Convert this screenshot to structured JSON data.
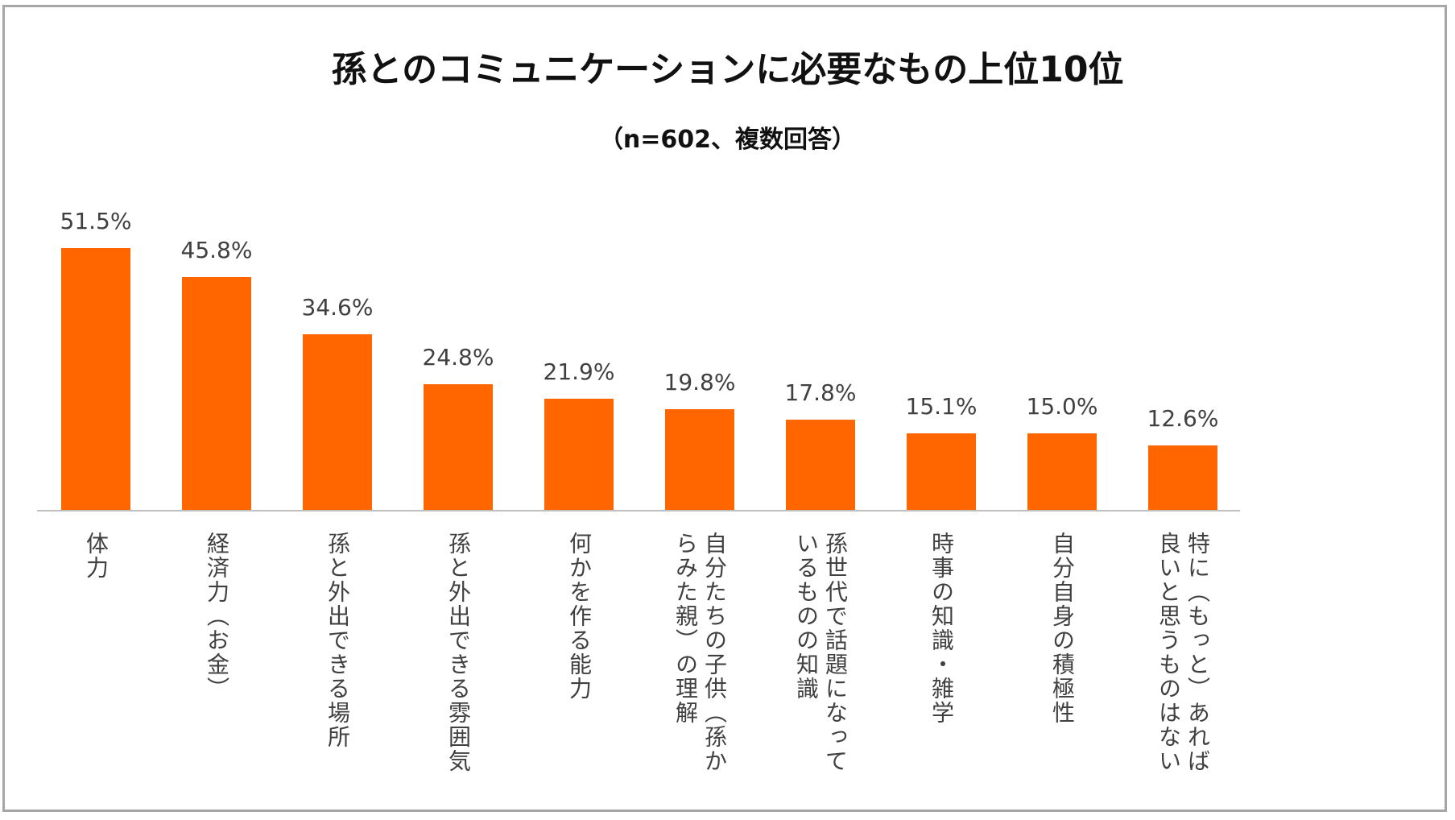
{
  "chart_data": {
    "type": "bar",
    "title": "孫とのコミュニケーションに必要なもの上位10位",
    "subtitle": "（n=602、複数回答）",
    "categories": [
      "体力",
      "経済力（お金）",
      "孫と外出できる場所",
      "孫と外出できる雰囲気",
      "何かを作る能力",
      "自分たちの子供（孫からみた親）の理解",
      "孫世代で話題になっているものの知識",
      "時事の知識・雑学",
      "自分自身の積極性",
      "特に（もっと）あれば良いと思うものはない"
    ],
    "category_lines": [
      [
        "体力"
      ],
      [
        "経済力（お金）"
      ],
      [
        "孫と外出できる場所"
      ],
      [
        "孫と外出できる雰囲気"
      ],
      [
        "何かを作る能力"
      ],
      [
        "自分たちの子供（孫か",
        "らみた親）の理解"
      ],
      [
        "孫世代で話題になって",
        "いるものの知識"
      ],
      [
        "時事の知識・雑学"
      ],
      [
        "自分自身の積極性"
      ],
      [
        "特に（もっと）あれば",
        "良いと思うものはない"
      ]
    ],
    "values": [
      51.5,
      45.8,
      34.6,
      24.8,
      21.9,
      19.8,
      17.8,
      15.1,
      15.0,
      12.6
    ],
    "value_labels": [
      "51.5%",
      "45.8%",
      "34.6%",
      "24.8%",
      "21.9%",
      "19.8%",
      "17.8%",
      "15.1%",
      "15.0%",
      "12.6%"
    ],
    "ylim": [
      0,
      55
    ],
    "grid": false,
    "legend": "none",
    "bar_color": "#ff6600"
  }
}
